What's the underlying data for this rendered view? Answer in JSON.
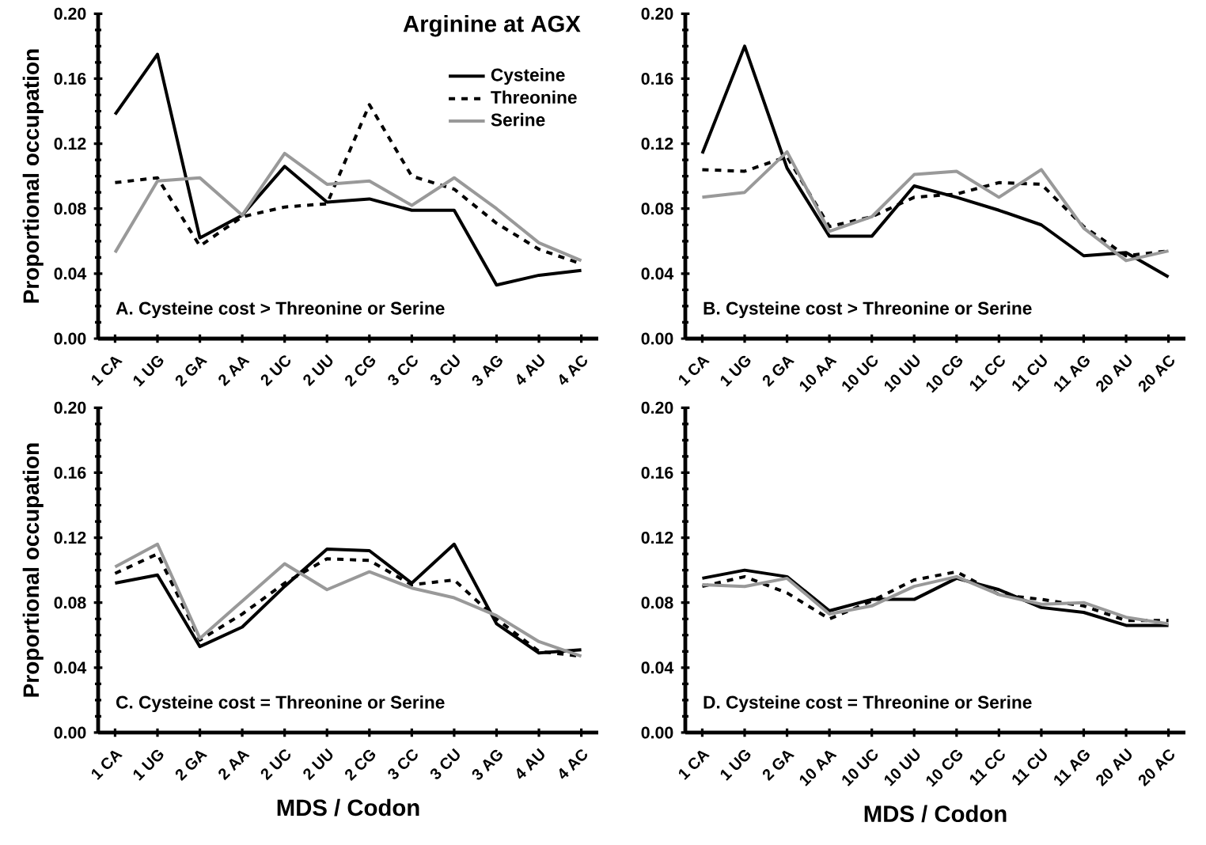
{
  "chart_data": [
    {
      "type": "line",
      "title": "Arginine at AGX",
      "ylabel": "Proportional occupation",
      "annotations": [
        "A. Cysteine cost > Threonine or Serine"
      ],
      "legend": "top right",
      "marker": "none",
      "categories": [
        "1 CA",
        "1 UG",
        "2 GA",
        "2 AA",
        "2 UC",
        "2 UU",
        "2 CG",
        "3 CC",
        "3 CU",
        "3 AG",
        "4 AU",
        "4 AC"
      ],
      "ylim": [
        0,
        0.2
      ],
      "yticks": [
        {
          "value": 0,
          "label": "0.00"
        },
        {
          "value": 0.04,
          "label": "0.04"
        },
        {
          "value": 0.08,
          "label": "0.08"
        },
        {
          "value": 0.12,
          "label": "0.12"
        },
        {
          "value": 0.16,
          "label": "0.16"
        },
        {
          "value": 0.2,
          "label": "0.20"
        }
      ],
      "series": [
        {
          "name": "Cysteine",
          "color": "#000000",
          "line_style": "solid",
          "values": [
            0.138,
            0.175,
            0.062,
            0.076,
            0.106,
            0.084,
            0.086,
            0.079,
            0.079,
            0.033,
            0.039,
            0.042
          ]
        },
        {
          "name": "Threonine",
          "color": "#000000",
          "line_style": "dashed",
          "values": [
            0.096,
            0.099,
            0.057,
            0.075,
            0.081,
            0.083,
            0.144,
            0.1,
            0.092,
            0.071,
            0.055,
            0.046
          ]
        },
        {
          "name": "Serine",
          "color": "#999999",
          "line_style": "solid",
          "values": [
            0.053,
            0.097,
            0.099,
            0.076,
            0.114,
            0.095,
            0.097,
            0.082,
            0.099,
            0.08,
            0.059,
            0.048
          ]
        }
      ]
    },
    {
      "type": "line",
      "annotations": [
        "B. Cysteine cost > Threonine or Serine"
      ],
      "marker": "none",
      "categories": [
        "1 CA",
        "1 UG",
        "2 GA",
        "10 AA",
        "10 UC",
        "10 UU",
        "10 CG",
        "11 CC",
        "11 CU",
        "11 AG",
        "20 AU",
        "20 AC"
      ],
      "ylim": [
        0,
        0.2
      ],
      "yticks": [
        {
          "value": 0,
          "label": "0.00"
        },
        {
          "value": 0.04,
          "label": "0.04"
        },
        {
          "value": 0.08,
          "label": "0.08"
        },
        {
          "value": 0.12,
          "label": "0.12"
        },
        {
          "value": 0.16,
          "label": "0.16"
        },
        {
          "value": 0.2,
          "label": "0.20"
        }
      ],
      "series": [
        {
          "color": "#000000",
          "line_style": "solid",
          "values": [
            0.114,
            0.18,
            0.105,
            0.063,
            0.063,
            0.094,
            0.087,
            0.079,
            0.07,
            0.051,
            0.053,
            0.038
          ]
        },
        {
          "color": "#000000",
          "line_style": "dashed",
          "values": [
            0.104,
            0.103,
            0.112,
            0.069,
            0.075,
            0.087,
            0.089,
            0.096,
            0.095,
            0.069,
            0.051,
            0.054
          ]
        },
        {
          "color": "#999999",
          "line_style": "solid",
          "values": [
            0.087,
            0.09,
            0.115,
            0.066,
            0.075,
            0.101,
            0.103,
            0.087,
            0.104,
            0.068,
            0.048,
            0.054
          ]
        }
      ]
    },
    {
      "type": "line",
      "xlabel": "MDS / Codon",
      "ylabel": "Proportional occupation",
      "annotations": [
        "C. Cysteine cost = Threonine or Serine"
      ],
      "marker": "none",
      "categories": [
        "1 CA",
        "1 UG",
        "2 GA",
        "2 AA",
        "2 UC",
        "2 UU",
        "2 CG",
        "3 CC",
        "3 CU",
        "3 AG",
        "4 AU",
        "4 AC"
      ],
      "ylim": [
        0,
        0.2
      ],
      "yticks": [
        {
          "value": 0,
          "label": "0.00"
        },
        {
          "value": 0.04,
          "label": "0.04"
        },
        {
          "value": 0.08,
          "label": "0.08"
        },
        {
          "value": 0.12,
          "label": "0.12"
        },
        {
          "value": 0.16,
          "label": "0.16"
        },
        {
          "value": 0.2,
          "label": "0.20"
        }
      ],
      "series": [
        {
          "color": "#000000",
          "line_style": "solid",
          "values": [
            0.092,
            0.097,
            0.053,
            0.065,
            0.09,
            0.113,
            0.112,
            0.092,
            0.116,
            0.067,
            0.049,
            0.051
          ]
        },
        {
          "color": "#000000",
          "line_style": "dashed",
          "values": [
            0.098,
            0.11,
            0.057,
            0.073,
            0.092,
            0.107,
            0.106,
            0.091,
            0.094,
            0.07,
            0.05,
            0.047
          ]
        },
        {
          "color": "#999999",
          "line_style": "solid",
          "values": [
            0.102,
            0.116,
            0.058,
            0.081,
            0.104,
            0.088,
            0.099,
            0.089,
            0.083,
            0.072,
            0.056,
            0.047
          ]
        }
      ]
    },
    {
      "type": "line",
      "xlabel": "MDS / Codon",
      "annotations": [
        "D. Cysteine cost = Threonine or Serine"
      ],
      "marker": "none",
      "categories": [
        "1 CA",
        "1 UG",
        "2 GA",
        "10 AA",
        "10 UC",
        "10 UU",
        "10 CG",
        "11 CC",
        "11 CU",
        "11 AG",
        "20 AU",
        "20 AC"
      ],
      "ylim": [
        0,
        0.2
      ],
      "yticks": [
        {
          "value": 0,
          "label": "0.00"
        },
        {
          "value": 0.04,
          "label": "0.04"
        },
        {
          "value": 0.08,
          "label": "0.08"
        },
        {
          "value": 0.12,
          "label": "0.12"
        },
        {
          "value": 0.16,
          "label": "0.16"
        },
        {
          "value": 0.2,
          "label": "0.20"
        }
      ],
      "series": [
        {
          "color": "#000000",
          "line_style": "solid",
          "values": [
            0.095,
            0.1,
            0.096,
            0.075,
            0.082,
            0.082,
            0.095,
            0.088,
            0.077,
            0.074,
            0.066,
            0.066
          ]
        },
        {
          "color": "#000000",
          "line_style": "dashed",
          "values": [
            0.09,
            0.096,
            0.086,
            0.07,
            0.081,
            0.094,
            0.099,
            0.085,
            0.082,
            0.078,
            0.069,
            0.069
          ]
        },
        {
          "color": "#999999",
          "line_style": "solid",
          "values": [
            0.091,
            0.09,
            0.095,
            0.073,
            0.078,
            0.09,
            0.096,
            0.085,
            0.079,
            0.08,
            0.071,
            0.067
          ]
        }
      ]
    }
  ]
}
